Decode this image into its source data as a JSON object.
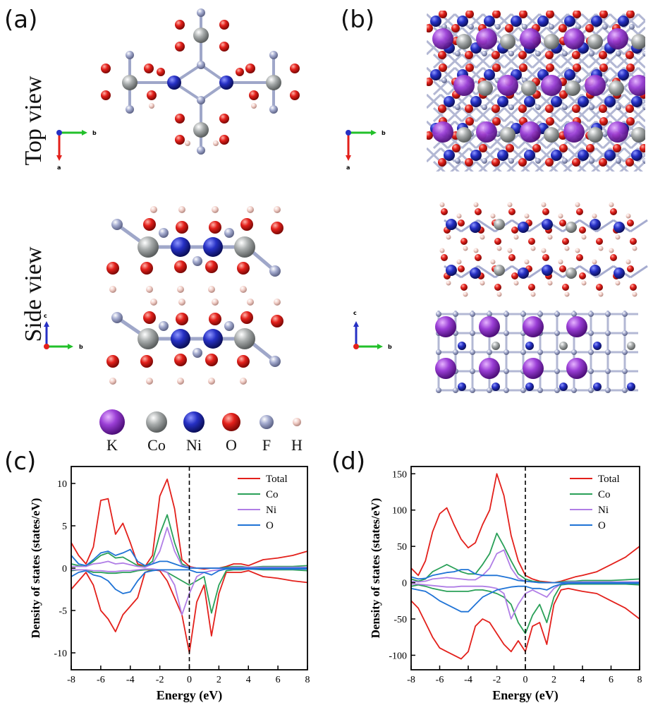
{
  "panels": {
    "a": "(a)",
    "b": "(b)",
    "c": "(c)",
    "d": "(d)"
  },
  "view_labels": {
    "top": "Top view",
    "side": "Side view"
  },
  "axes_triads": {
    "a_top": {
      "x": "b",
      "y": "a"
    },
    "a_side": {
      "x": "b",
      "y": "c"
    },
    "b_top": {
      "x": "b",
      "y": "a"
    },
    "b_side": {
      "x": "b",
      "y": "c"
    }
  },
  "atom_legend": [
    {
      "label": "K",
      "color": "#9b3fd6"
    },
    {
      "label": "Co",
      "color": "#9ea3a3"
    },
    {
      "label": "Ni",
      "color": "#2630c4"
    },
    {
      "label": "O",
      "color": "#e3201b"
    },
    {
      "label": "F",
      "color": "#9fa7c9"
    },
    {
      "label": "H",
      "color": "#f2c8c0"
    }
  ],
  "chart_data": [
    {
      "type": "line",
      "xlabel": "Energy (eV)",
      "ylabel": "Density of states (states/eV)",
      "xlim": [
        -8,
        8
      ],
      "ylim": [
        -12,
        12
      ],
      "xticks": [
        -8,
        -6,
        -4,
        -2,
        0,
        2,
        4,
        6,
        8
      ],
      "yticks": [
        -10,
        -5,
        0,
        5,
        10
      ],
      "fermi_level": 0,
      "legend_position": "top-right",
      "x": [
        -8,
        -7.5,
        -7,
        -6.5,
        -6,
        -5.5,
        -5,
        -4.5,
        -4,
        -3.5,
        -3,
        -2.5,
        -2,
        -1.5,
        -1,
        -0.5,
        0,
        0.5,
        1,
        1.5,
        2,
        2.5,
        3,
        3.5,
        4,
        5,
        6,
        7,
        8
      ],
      "series": [
        {
          "name": "Total",
          "color": "#e3201b",
          "up": [
            3,
            1.5,
            0.5,
            2.5,
            8,
            8.2,
            4,
            5.3,
            3,
            0.5,
            0.2,
            1.5,
            8.5,
            10.5,
            7,
            1,
            0.2,
            0,
            -0.1,
            0,
            0,
            0.2,
            0.5,
            0.5,
            0.3,
            1,
            1.2,
            1.5,
            2
          ],
          "down": [
            -2.5,
            -1.5,
            -0.5,
            -2,
            -5,
            -6,
            -7.5,
            -5.5,
            -4.5,
            -3.5,
            -0.5,
            -0.2,
            -0.3,
            -1.5,
            -3.5,
            -5.5,
            -10,
            -4,
            -2,
            -8,
            -3,
            -0.5,
            -0.5,
            -0.5,
            -0.3,
            -1,
            -1.2,
            -1.5,
            -1.7
          ]
        },
        {
          "name": "Co",
          "color": "#2aa058",
          "up": [
            0.5,
            0.3,
            0.2,
            0.8,
            1.5,
            1.8,
            1.2,
            1.3,
            0.8,
            0.3,
            0.2,
            0.8,
            4,
            6.3,
            3,
            0.5,
            0.1,
            0,
            0,
            0,
            0,
            0.1,
            0.2,
            0.2,
            0.1,
            0.2,
            0.2,
            0.2,
            0.3
          ],
          "down": [
            -0.3,
            -0.2,
            -0.2,
            -0.5,
            -0.5,
            -0.6,
            -0.6,
            -0.5,
            -0.5,
            -0.3,
            -0.2,
            -0.2,
            -0.2,
            -0.5,
            -1,
            -1.5,
            -2,
            -1.5,
            -1,
            -5.3,
            -2,
            -0.3,
            -0.2,
            -0.2,
            -0.1,
            -0.2,
            -0.2,
            -0.2,
            -0.3
          ]
        },
        {
          "name": "Ni",
          "color": "#b07ee6",
          "up": [
            0.2,
            0.2,
            0.2,
            0.5,
            0.6,
            0.8,
            0.5,
            0.6,
            0.4,
            0.2,
            0.1,
            0.5,
            2,
            4.8,
            2,
            0.3,
            0.1,
            0,
            0,
            0,
            0,
            0,
            0.1,
            0.1,
            0.1,
            0.1,
            0.1,
            0.1,
            0.1
          ],
          "down": [
            -0.2,
            -0.2,
            -0.2,
            -0.3,
            -0.3,
            -0.4,
            -0.4,
            -0.3,
            -0.3,
            -0.2,
            -0.1,
            -0.1,
            -0.2,
            -0.5,
            -2,
            -5.5,
            -3,
            -1,
            -0.5,
            -0.3,
            -0.2,
            -0.1,
            -0.1,
            -0.1,
            -0.1,
            -0.1,
            -0.1,
            -0.1,
            -0.1
          ]
        },
        {
          "name": "O",
          "color": "#1f73d6",
          "up": [
            1.5,
            0.5,
            0.3,
            1.0,
            1.8,
            2,
            1.5,
            1.8,
            2.2,
            0.8,
            0.3,
            0.5,
            0.8,
            0.8,
            0.5,
            0.2,
            0,
            0,
            0,
            0,
            0,
            0,
            0,
            0,
            0,
            0,
            0,
            0,
            0
          ],
          "down": [
            -1,
            -0.5,
            -0.3,
            -0.8,
            -1,
            -1.5,
            -2.5,
            -3,
            -2.8,
            -1.5,
            -0.5,
            -0.3,
            -0.2,
            -0.2,
            -0.2,
            -0.2,
            -0.2,
            -0.5,
            -0.5,
            -0.8,
            -0.3,
            -0.1,
            -0.1,
            -0.1,
            -0.1,
            -0.1,
            -0.1,
            -0.1,
            -0.1
          ]
        }
      ]
    },
    {
      "type": "line",
      "xlabel": "Energy (eV)",
      "ylabel": "Density of states (states/eV)",
      "xlim": [
        -8,
        8
      ],
      "ylim": [
        -120,
        160
      ],
      "xticks": [
        -8,
        -6,
        -4,
        -2,
        0,
        2,
        4,
        6,
        8
      ],
      "yticks": [
        -100,
        -50,
        0,
        50,
        100,
        150
      ],
      "fermi_level": 0,
      "legend_position": "top-right",
      "x": [
        -8,
        -7.5,
        -7,
        -6.5,
        -6,
        -5.5,
        -5,
        -4.5,
        -4,
        -3.5,
        -3,
        -2.5,
        -2,
        -1.5,
        -1,
        -0.5,
        0,
        0.5,
        1,
        1.5,
        2,
        2.5,
        3,
        3.5,
        4,
        5,
        6,
        7,
        8
      ],
      "series": [
        {
          "name": "Total",
          "color": "#e3201b",
          "up": [
            20,
            10,
            30,
            70,
            95,
            103,
            80,
            60,
            48,
            55,
            80,
            100,
            150,
            120,
            65,
            30,
            10,
            5,
            2,
            1,
            0,
            2,
            5,
            8,
            10,
            15,
            25,
            35,
            50
          ],
          "down": [
            -25,
            -35,
            -55,
            -75,
            -90,
            -95,
            -100,
            -105,
            -95,
            -60,
            -50,
            -55,
            -70,
            -85,
            -95,
            -80,
            -95,
            -60,
            -55,
            -85,
            -30,
            -10,
            -8,
            -10,
            -12,
            -15,
            -25,
            -35,
            -50
          ]
        },
        {
          "name": "Co",
          "color": "#2aa058",
          "up": [
            5,
            2,
            5,
            15,
            20,
            25,
            20,
            15,
            12,
            12,
            25,
            40,
            68,
            50,
            30,
            12,
            5,
            2,
            1,
            0,
            0,
            1,
            2,
            2,
            3,
            3,
            3,
            4,
            5
          ],
          "down": [
            -5,
            -3,
            -5,
            -8,
            -10,
            -12,
            -12,
            -12,
            -12,
            -10,
            -10,
            -12,
            -15,
            -20,
            -30,
            -55,
            -70,
            -45,
            -30,
            -55,
            -20,
            -3,
            -2,
            -2,
            -2,
            -2,
            -2,
            -2,
            -3
          ]
        },
        {
          "name": "Ni",
          "color": "#b07ee6",
          "up": [
            2,
            1,
            2,
            5,
            6,
            7,
            6,
            5,
            4,
            4,
            10,
            20,
            40,
            45,
            20,
            6,
            2,
            1,
            0,
            0,
            0,
            0,
            1,
            1,
            1,
            1,
            1,
            1,
            1
          ],
          "down": [
            -2,
            -2,
            -3,
            -4,
            -5,
            -6,
            -6,
            -5,
            -5,
            -5,
            -5,
            -6,
            -8,
            -15,
            -50,
            -30,
            -15,
            -10,
            -15,
            -20,
            -8,
            -2,
            -1,
            -1,
            -1,
            -1,
            -1,
            -1,
            -1
          ]
        },
        {
          "name": "O",
          "color": "#1f73d6",
          "up": [
            8,
            5,
            6,
            10,
            12,
            14,
            15,
            18,
            18,
            12,
            10,
            10,
            10,
            8,
            6,
            3,
            2,
            1,
            0,
            0,
            0,
            0,
            0,
            0,
            0,
            0,
            0,
            0,
            0
          ],
          "down": [
            -8,
            -10,
            -12,
            -18,
            -25,
            -30,
            -35,
            -40,
            -40,
            -30,
            -20,
            -15,
            -10,
            -8,
            -6,
            -5,
            -5,
            -8,
            -8,
            -10,
            -5,
            -2,
            -1,
            -1,
            -1,
            -1,
            -1,
            -1,
            -1
          ]
        }
      ]
    }
  ]
}
